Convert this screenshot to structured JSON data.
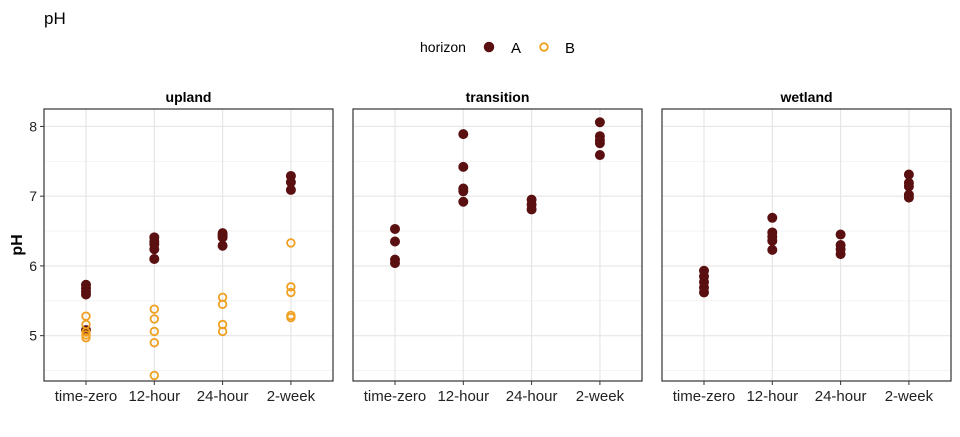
{
  "page_title": "pH",
  "legend": {
    "title": "horizon",
    "entries": [
      "A",
      "B"
    ]
  },
  "colors": {
    "A": "#5a1010",
    "B": "#f0a020",
    "grid": "#e6e6e6",
    "panel_border": "#333333"
  },
  "chart_data": {
    "type": "scatter",
    "title": "pH",
    "xlabel": "",
    "ylabel": "pH",
    "categories": [
      "time-zero",
      "12-hour",
      "24-hour",
      "2-week"
    ],
    "ylim": [
      4.35,
      8.25
    ],
    "yticks": [
      5,
      6,
      7,
      8
    ],
    "grid": true,
    "legend_position": "top",
    "facets": [
      {
        "name": "upland",
        "series": [
          {
            "name": "A",
            "points": [
              {
                "x": "time-zero",
                "y": 5.73
              },
              {
                "x": "time-zero",
                "y": 5.68
              },
              {
                "x": "time-zero",
                "y": 5.63
              },
              {
                "x": "time-zero",
                "y": 5.59
              },
              {
                "x": "time-zero",
                "y": 5.08
              },
              {
                "x": "12-hour",
                "y": 6.41
              },
              {
                "x": "12-hour",
                "y": 6.35
              },
              {
                "x": "12-hour",
                "y": 6.31
              },
              {
                "x": "12-hour",
                "y": 6.24
              },
              {
                "x": "12-hour",
                "y": 6.1
              },
              {
                "x": "24-hour",
                "y": 6.47
              },
              {
                "x": "24-hour",
                "y": 6.44
              },
              {
                "x": "24-hour",
                "y": 6.41
              },
              {
                "x": "24-hour",
                "y": 6.29
              },
              {
                "x": "2-week",
                "y": 7.29
              },
              {
                "x": "2-week",
                "y": 7.2
              },
              {
                "x": "2-week",
                "y": 7.09
              }
            ]
          },
          {
            "name": "B",
            "points": [
              {
                "x": "time-zero",
                "y": 5.28
              },
              {
                "x": "time-zero",
                "y": 5.16
              },
              {
                "x": "time-zero",
                "y": 5.05
              },
              {
                "x": "time-zero",
                "y": 5.01
              },
              {
                "x": "time-zero",
                "y": 4.97
              },
              {
                "x": "12-hour",
                "y": 5.38
              },
              {
                "x": "12-hour",
                "y": 5.24
              },
              {
                "x": "12-hour",
                "y": 5.06
              },
              {
                "x": "12-hour",
                "y": 4.9
              },
              {
                "x": "12-hour",
                "y": 4.43
              },
              {
                "x": "24-hour",
                "y": 5.55
              },
              {
                "x": "24-hour",
                "y": 5.45
              },
              {
                "x": "24-hour",
                "y": 5.16
              },
              {
                "x": "24-hour",
                "y": 5.06
              },
              {
                "x": "2-week",
                "y": 6.33
              },
              {
                "x": "2-week",
                "y": 5.7
              },
              {
                "x": "2-week",
                "y": 5.62
              },
              {
                "x": "2-week",
                "y": 5.29
              },
              {
                "x": "2-week",
                "y": 5.26
              }
            ]
          }
        ]
      },
      {
        "name": "transition",
        "series": [
          {
            "name": "A",
            "points": [
              {
                "x": "time-zero",
                "y": 6.53
              },
              {
                "x": "time-zero",
                "y": 6.35
              },
              {
                "x": "time-zero",
                "y": 6.09
              },
              {
                "x": "time-zero",
                "y": 6.04
              },
              {
                "x": "12-hour",
                "y": 7.89
              },
              {
                "x": "12-hour",
                "y": 7.42
              },
              {
                "x": "12-hour",
                "y": 7.11
              },
              {
                "x": "12-hour",
                "y": 7.07
              },
              {
                "x": "12-hour",
                "y": 6.92
              },
              {
                "x": "24-hour",
                "y": 6.95
              },
              {
                "x": "24-hour",
                "y": 6.88
              },
              {
                "x": "24-hour",
                "y": 6.81
              },
              {
                "x": "2-week",
                "y": 8.06
              },
              {
                "x": "2-week",
                "y": 7.86
              },
              {
                "x": "2-week",
                "y": 7.8
              },
              {
                "x": "2-week",
                "y": 7.76
              },
              {
                "x": "2-week",
                "y": 7.59
              }
            ]
          },
          {
            "name": "B",
            "points": []
          }
        ]
      },
      {
        "name": "wetland",
        "series": [
          {
            "name": "A",
            "points": [
              {
                "x": "time-zero",
                "y": 5.93
              },
              {
                "x": "time-zero",
                "y": 5.85
              },
              {
                "x": "time-zero",
                "y": 5.77
              },
              {
                "x": "time-zero",
                "y": 5.69
              },
              {
                "x": "time-zero",
                "y": 5.62
              },
              {
                "x": "12-hour",
                "y": 6.69
              },
              {
                "x": "12-hour",
                "y": 6.48
              },
              {
                "x": "12-hour",
                "y": 6.42
              },
              {
                "x": "12-hour",
                "y": 6.36
              },
              {
                "x": "12-hour",
                "y": 6.23
              },
              {
                "x": "24-hour",
                "y": 6.45
              },
              {
                "x": "24-hour",
                "y": 6.3
              },
              {
                "x": "24-hour",
                "y": 6.24
              },
              {
                "x": "24-hour",
                "y": 6.17
              },
              {
                "x": "2-week",
                "y": 7.31
              },
              {
                "x": "2-week",
                "y": 7.19
              },
              {
                "x": "2-week",
                "y": 7.14
              },
              {
                "x": "2-week",
                "y": 7.02
              },
              {
                "x": "2-week",
                "y": 6.98
              }
            ]
          },
          {
            "name": "B",
            "points": []
          }
        ]
      }
    ]
  }
}
